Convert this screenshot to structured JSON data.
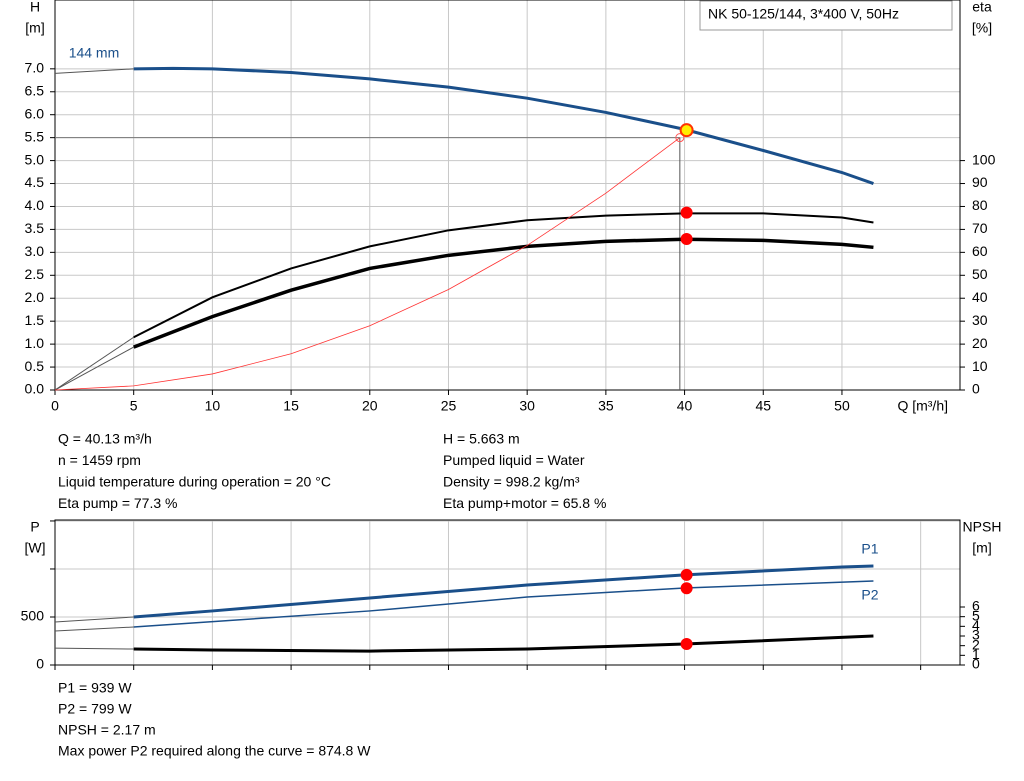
{
  "chart_data": [
    {
      "type": "line",
      "title": "NK 50-125/144, 3*400 V, 50Hz",
      "ylabel": [
        "H",
        "[m]"
      ],
      "y2label": [
        "eta",
        "[%]"
      ],
      "xlabel": "Q [m³/h]",
      "xlim": [
        0,
        57.5
      ],
      "xticks": [
        0,
        5,
        10,
        15,
        20,
        25,
        30,
        35,
        40,
        45,
        50
      ],
      "ylim": [
        0,
        8.5
      ],
      "yticks": [
        {
          "value": 0,
          "label": "0.0"
        },
        0.5,
        {
          "value": 1,
          "label": "1.0"
        },
        1.5,
        {
          "value": 2,
          "label": "2.0"
        },
        2.5,
        {
          "value": 3,
          "label": "3.0"
        },
        3.5,
        {
          "value": 4,
          "label": "4.0"
        },
        4.5,
        {
          "value": 5,
          "label": "5.0"
        },
        5.5,
        {
          "value": 6,
          "label": "6.0"
        },
        6.5,
        {
          "value": 7,
          "label": "7.0"
        }
      ],
      "y2lim": [
        0,
        170
      ],
      "y2ticks": [
        0,
        10,
        20,
        30,
        40,
        50,
        60,
        70,
        80,
        90,
        100
      ],
      "grid": true,
      "series": [
        {
          "color": "#555555",
          "width": 1,
          "x": [
            0,
            5
          ],
          "values": [
            6.9,
            7.0
          ]
        },
        {
          "name": "144 mm",
          "color": "#1a4f8a",
          "width": 3,
          "x": [
            5,
            7.5,
            10,
            15,
            20,
            25,
            30,
            35,
            40,
            45,
            50,
            52
          ],
          "values": [
            7.0,
            7.01,
            7.0,
            6.92,
            6.78,
            6.6,
            6.36,
            6.05,
            5.68,
            5.22,
            4.74,
            4.5
          ]
        },
        {
          "color": "#555555",
          "width": 1,
          "axis": "y2",
          "x": [
            0,
            5
          ],
          "values": [
            0,
            23
          ]
        },
        {
          "color": "#000000",
          "width": 2,
          "axis": "y2",
          "x": [
            5,
            10,
            15,
            20,
            25,
            30,
            35,
            40,
            45,
            50,
            52
          ],
          "values": [
            23,
            40.4,
            53,
            62.6,
            69.6,
            74,
            76,
            77,
            77,
            75.2,
            73
          ]
        },
        {
          "color": "#555555",
          "width": 1,
          "axis": "y2",
          "x": [
            0,
            5
          ],
          "values": [
            0,
            18.7
          ]
        },
        {
          "color": "#000000",
          "width": 3.5,
          "axis": "y2",
          "x": [
            5,
            10,
            15,
            20,
            25,
            30,
            35,
            40,
            45,
            50,
            52
          ],
          "values": [
            18.7,
            32,
            43.5,
            53,
            58.7,
            62.6,
            64.8,
            65.7,
            65.2,
            63.5,
            62.2
          ]
        },
        {
          "color": "#ff3333",
          "width": 0.8,
          "x": [
            0,
            5,
            10,
            15,
            20,
            25,
            30,
            35,
            39.7
          ],
          "values": [
            0,
            0.09,
            0.35,
            0.79,
            1.4,
            2.19,
            3.15,
            4.29,
            5.5
          ]
        }
      ],
      "guide": {
        "x": 39.7,
        "y": 5.5
      },
      "markers": [
        {
          "x": 40.13,
          "y": 5.663,
          "color": "#ffee00"
        },
        {
          "x": 40.13,
          "y": 77.3,
          "axis": "y2",
          "color": "#ff0000"
        },
        {
          "x": 40.13,
          "y": 65.8,
          "axis": "y2",
          "color": "#ff0000"
        }
      ],
      "annotations": [
        "Q = 40.13 m³/h",
        "n = 1459 rpm",
        "Liquid temperature during operation = 20 °C",
        "Eta pump = 77.3 %",
        "H = 5.663 m",
        "Pumped liquid = Water",
        "Density = 998.2 kg/m³",
        "Eta pump+motor = 65.8 %"
      ]
    },
    {
      "type": "line",
      "ylabel": [
        "P",
        "[W]"
      ],
      "y2label": [
        "NPSH",
        "[m]"
      ],
      "xlim": [
        0,
        57.5
      ],
      "xgrid": [
        0,
        5,
        10,
        15,
        20,
        25,
        30,
        35,
        40,
        45,
        50,
        55
      ],
      "ylim": [
        0,
        1510
      ],
      "yticks": [
        0,
        500
      ],
      "yticks_minor": [
        1000,
        1500
      ],
      "y2lim": [
        0,
        15
      ],
      "y2ticks": [
        0,
        1,
        2,
        3,
        4,
        5,
        6
      ],
      "grid": true,
      "series": [
        {
          "color": "#555555",
          "width": 1,
          "x": [
            0,
            5
          ],
          "values": [
            448,
            500
          ]
        },
        {
          "name": "P1",
          "color": "#1a4f8a",
          "width": 3,
          "x": [
            5,
            10,
            20,
            30,
            40,
            50,
            52
          ],
          "values": [
            500,
            563,
            698,
            833,
            938,
            1021,
            1031
          ]
        },
        {
          "color": "#555555",
          "width": 1,
          "x": [
            0,
            5
          ],
          "values": [
            354,
            396
          ]
        },
        {
          "name": "P2",
          "color": "#1a4f8a",
          "width": 1.5,
          "x": [
            5,
            20,
            30,
            40,
            52
          ],
          "values": [
            396,
            563,
            708,
            802,
            875
          ]
        },
        {
          "color": "#555555",
          "width": 1,
          "axis": "y2",
          "x": [
            0,
            5
          ],
          "values": [
            1.75,
            1.65
          ]
        },
        {
          "color": "#000000",
          "width": 3,
          "axis": "y2",
          "x": [
            5,
            10,
            20,
            30,
            40,
            52
          ],
          "values": [
            1.65,
            1.55,
            1.44,
            1.65,
            2.17,
            3.0
          ]
        }
      ],
      "markers": [
        {
          "x": 40.13,
          "y": 939,
          "color": "#ff0000"
        },
        {
          "x": 40.13,
          "y": 799,
          "color": "#ff0000"
        },
        {
          "x": 40.13,
          "y": 2.17,
          "axis": "y2",
          "color": "#ff0000"
        }
      ],
      "annotations": [
        "P1 = 939 W",
        "P2 = 799 W",
        "NPSH = 2.17 m",
        "Max power P2 required along the curve = 874.8 W"
      ]
    }
  ]
}
